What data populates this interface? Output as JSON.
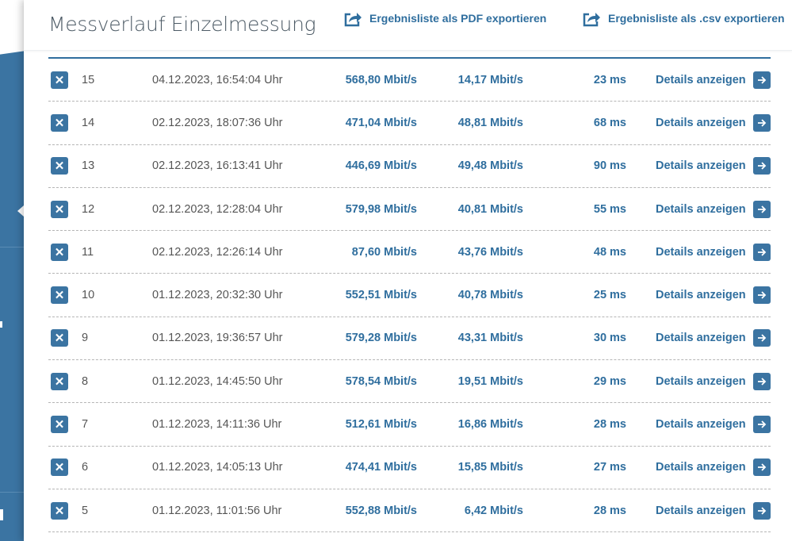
{
  "header": {
    "title": "Messverlauf Einzelmessung",
    "export_pdf": "Ergebnisliste als PDF exportieren",
    "export_csv": "Ergebnisliste als .csv exportieren"
  },
  "colors": {
    "accent": "#2f6e9e",
    "sidebar": "#3b74a2"
  },
  "rows": [
    {
      "nr": "15",
      "date": "04.12.2023, 16:54:04 Uhr",
      "download": "568,80 Mbit/s",
      "upload": "14,17 Mbit/s",
      "ping": "23 ms",
      "details": "Details anzeigen"
    },
    {
      "nr": "14",
      "date": "02.12.2023, 18:07:36 Uhr",
      "download": "471,04 Mbit/s",
      "upload": "48,81 Mbit/s",
      "ping": "68 ms",
      "details": "Details anzeigen"
    },
    {
      "nr": "13",
      "date": "02.12.2023, 16:13:41 Uhr",
      "download": "446,69 Mbit/s",
      "upload": "49,48 Mbit/s",
      "ping": "90 ms",
      "details": "Details anzeigen"
    },
    {
      "nr": "12",
      "date": "02.12.2023, 12:28:04 Uhr",
      "download": "579,98 Mbit/s",
      "upload": "40,81 Mbit/s",
      "ping": "55 ms",
      "details": "Details anzeigen"
    },
    {
      "nr": "11",
      "date": "02.12.2023, 12:26:14 Uhr",
      "download": "87,60 Mbit/s",
      "upload": "43,76 Mbit/s",
      "ping": "48 ms",
      "details": "Details anzeigen"
    },
    {
      "nr": "10",
      "date": "01.12.2023, 20:32:30 Uhr",
      "download": "552,51 Mbit/s",
      "upload": "40,78 Mbit/s",
      "ping": "25 ms",
      "details": "Details anzeigen"
    },
    {
      "nr": "9",
      "date": "01.12.2023, 19:36:57 Uhr",
      "download": "579,28 Mbit/s",
      "upload": "43,31 Mbit/s",
      "ping": "30 ms",
      "details": "Details anzeigen"
    },
    {
      "nr": "8",
      "date": "01.12.2023, 14:45:50 Uhr",
      "download": "578,54 Mbit/s",
      "upload": "19,51 Mbit/s",
      "ping": "29 ms",
      "details": "Details anzeigen"
    },
    {
      "nr": "7",
      "date": "01.12.2023, 14:11:36 Uhr",
      "download": "512,61 Mbit/s",
      "upload": "16,86 Mbit/s",
      "ping": "28 ms",
      "details": "Details anzeigen"
    },
    {
      "nr": "6",
      "date": "01.12.2023, 14:05:13 Uhr",
      "download": "474,41 Mbit/s",
      "upload": "15,85 Mbit/s",
      "ping": "27 ms",
      "details": "Details anzeigen"
    },
    {
      "nr": "5",
      "date": "01.12.2023, 11:01:56 Uhr",
      "download": "552,88 Mbit/s",
      "upload": "6,42 Mbit/s",
      "ping": "28 ms",
      "details": "Details anzeigen"
    }
  ]
}
